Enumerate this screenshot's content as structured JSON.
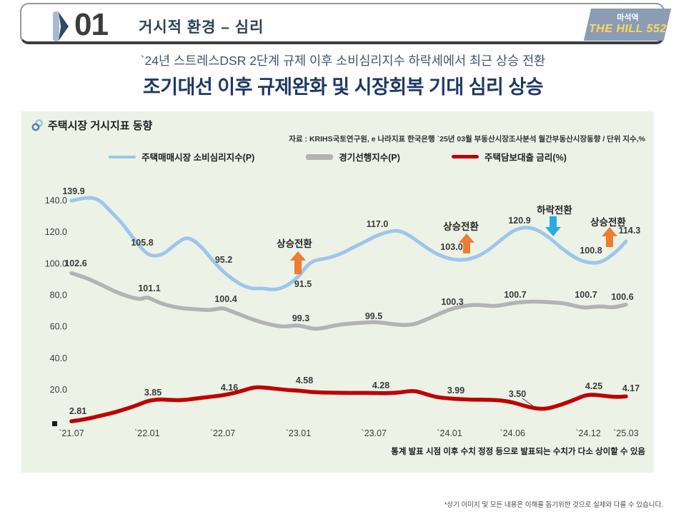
{
  "header": {
    "number": "01",
    "title": "거시적 환경 – 심리",
    "badge": {
      "line1": "마석역",
      "line2": "THE HILL 552"
    }
  },
  "subtitle": "`24년 스트레스DSR 2단계 규제 이후 소비심리지수 하락세에서 최근 상승 전환",
  "title": "조기대선 이후 규제완화 및 시장회복 기대 심리 상승",
  "panel": {
    "heading": "주택시장 거시지표 동향",
    "source": "자료 : KRIHS국토연구원, e 나라지표 한국은행 `25년 03월 부동산시장조사분석 월간부동산시장동향 / 단위 지수,%",
    "note": "통계 발표 시점 이후 수치 정정 등으로 발표되는 수치가 다소 상이할 수 있음"
  },
  "footer": "*상기 이미지 및 모든 내용은 이해를 돕기위한 것으로 실제와 다를 수 있습니다.",
  "colors": {
    "sentiment_line": "#9dc6ea",
    "leading_line": "#b3b3b3",
    "rate_line": "#c00000",
    "up_arrow": "#ed7d31",
    "down_arrow": "#29abe2",
    "panel_bg": "#edf2e7",
    "title_navy": "#1f3864",
    "badge_bg": "#8a9db4",
    "badge_yellow": "#ffd75e"
  },
  "chart_data": {
    "type": "line",
    "title": "주택시장 거시지표 동향",
    "xlabel": "",
    "ylabel": "지수, %",
    "grid": false,
    "legend_position": "top",
    "categories": [
      "`21.07",
      "`22.01",
      "`22.07",
      "`23.01",
      "`23.07",
      "`24.01",
      "`24.06",
      "`24.12",
      "`25.03"
    ],
    "y_axis_labels": [
      "140.0",
      "120.0",
      "100.0",
      "80.0",
      "60.0",
      "40.0",
      "20.0"
    ],
    "y_axis_range": [
      20,
      140
    ],
    "series": [
      {
        "name": "주택매매시장 소비심리지수(P)",
        "color": "#9dc6ea",
        "values": [
          139.9,
          105.8,
          95.2,
          91.5,
          117.0,
          103.0,
          120.9,
          100.8,
          114.3
        ],
        "labels": [
          "139.9",
          "105.8",
          "95.2",
          "91.5",
          "117.0",
          "103.0",
          "120.9",
          "100.8",
          "114.3"
        ],
        "shape_points": [
          [
            0,
            139.9
          ],
          [
            0.8,
            141.5
          ],
          [
            1.6,
            142
          ],
          [
            2.3,
            140
          ],
          [
            3,
            134
          ],
          [
            4,
            126
          ],
          [
            5,
            115
          ],
          [
            6,
            105.8
          ],
          [
            6.6,
            104.8
          ],
          [
            7.3,
            106
          ],
          [
            8.2,
            112
          ],
          [
            9,
            116.5
          ],
          [
            9.6,
            115.5
          ],
          [
            10.4,
            110
          ],
          [
            11.2,
            102
          ],
          [
            12,
            95.2
          ],
          [
            12.8,
            90
          ],
          [
            13.6,
            86
          ],
          [
            14.4,
            84
          ],
          [
            15.2,
            84.5
          ],
          [
            15.8,
            83.5
          ],
          [
            16.5,
            84
          ],
          [
            17.2,
            86.5
          ],
          [
            18,
            91.5
          ],
          [
            18.6,
            98
          ],
          [
            19.2,
            102
          ],
          [
            20,
            103
          ],
          [
            20.8,
            104.5
          ],
          [
            21.6,
            107
          ],
          [
            22.4,
            110.5
          ],
          [
            23.2,
            113.5
          ],
          [
            24,
            117
          ],
          [
            24.8,
            119.5
          ],
          [
            25.6,
            121
          ],
          [
            26.2,
            120.5
          ],
          [
            27,
            117
          ],
          [
            28,
            111
          ],
          [
            29,
            106
          ],
          [
            30,
            103
          ],
          [
            30.8,
            102.3
          ],
          [
            31.5,
            102.8
          ],
          [
            32.2,
            104.5
          ],
          [
            33,
            108
          ],
          [
            34,
            114.5
          ],
          [
            35,
            120.9
          ],
          [
            35.8,
            122.8
          ],
          [
            36.4,
            123
          ],
          [
            37.2,
            120.5
          ],
          [
            38,
            116
          ],
          [
            39,
            109
          ],
          [
            40,
            103.5
          ],
          [
            40.8,
            101
          ],
          [
            41.5,
            100.3
          ],
          [
            42.2,
            101.5
          ],
          [
            43,
            106
          ],
          [
            43.6,
            110.5
          ],
          [
            44,
            114.3
          ]
        ]
      },
      {
        "name": "경기선행지수(P)",
        "color": "#b3b3b3",
        "values": [
          102.6,
          101.1,
          100.4,
          99.3,
          99.5,
          100.3,
          100.7,
          100.7,
          100.6
        ],
        "labels": [
          "102.6",
          "101.1",
          "100.4",
          "99.3",
          "99.5",
          "100.3",
          "100.7",
          "100.7",
          "100.6"
        ],
        "shape_points": [
          [
            0,
            102.6
          ],
          [
            1,
            102.35
          ],
          [
            2,
            102.0
          ],
          [
            3,
            101.6
          ],
          [
            4,
            101.25
          ],
          [
            5,
            101.0
          ],
          [
            5.6,
            100.95
          ],
          [
            6,
            101.1
          ],
          [
            6.6,
            100.85
          ],
          [
            7.4,
            100.6
          ],
          [
            8.2,
            100.45
          ],
          [
            9,
            100.35
          ],
          [
            10,
            100.3
          ],
          [
            10.8,
            100.25
          ],
          [
            11.4,
            100.3
          ],
          [
            12,
            100.4
          ],
          [
            12.8,
            100.15
          ],
          [
            13.6,
            99.9
          ],
          [
            14.4,
            99.65
          ],
          [
            15.2,
            99.45
          ],
          [
            16,
            99.3
          ],
          [
            16.8,
            99.2
          ],
          [
            17.4,
            99.25
          ],
          [
            18,
            99.3
          ],
          [
            18.7,
            99.15
          ],
          [
            19.4,
            99.05
          ],
          [
            20.2,
            99.15
          ],
          [
            21,
            99.3
          ],
          [
            22,
            99.4
          ],
          [
            23,
            99.45
          ],
          [
            24,
            99.5
          ],
          [
            24.8,
            99.45
          ],
          [
            25.6,
            99.35
          ],
          [
            26.4,
            99.3
          ],
          [
            27.2,
            99.35
          ],
          [
            28,
            99.6
          ],
          [
            29,
            99.95
          ],
          [
            30,
            100.3
          ],
          [
            31,
            100.5
          ],
          [
            32,
            100.6
          ],
          [
            32.8,
            100.55
          ],
          [
            33.6,
            100.5
          ],
          [
            34.4,
            100.6
          ],
          [
            35,
            100.7
          ],
          [
            36,
            100.78
          ],
          [
            37,
            100.8
          ],
          [
            38,
            100.75
          ],
          [
            39,
            100.7
          ],
          [
            39.8,
            100.55
          ],
          [
            40.6,
            100.4
          ],
          [
            41.3,
            100.45
          ],
          [
            42,
            100.5
          ],
          [
            42.8,
            100.42
          ],
          [
            43.4,
            100.48
          ],
          [
            44,
            100.6
          ]
        ]
      },
      {
        "name": "주택담보대출 금리(%)",
        "color": "#c00000",
        "values": [
          2.81,
          3.85,
          4.16,
          4.58,
          4.28,
          3.99,
          3.5,
          4.25,
          4.17
        ],
        "labels": [
          "2.81",
          "3.85",
          "4.16",
          "4.58",
          "4.28",
          "3.99",
          "3.50",
          "4.25",
          "4.17"
        ],
        "shape_points": [
          [
            0,
            2.81
          ],
          [
            1,
            2.9
          ],
          [
            2,
            3.05
          ],
          [
            3,
            3.2
          ],
          [
            4,
            3.38
          ],
          [
            5,
            3.6
          ],
          [
            5.6,
            3.75
          ],
          [
            6,
            3.85
          ],
          [
            6.8,
            3.95
          ],
          [
            7.6,
            3.93
          ],
          [
            8.4,
            3.9
          ],
          [
            9.2,
            3.93
          ],
          [
            10,
            4.0
          ],
          [
            11,
            4.08
          ],
          [
            12,
            4.16
          ],
          [
            12.8,
            4.26
          ],
          [
            13.6,
            4.4
          ],
          [
            14.4,
            4.56
          ],
          [
            14.9,
            4.58
          ],
          [
            15.6,
            4.54
          ],
          [
            16.4,
            4.48
          ],
          [
            17.2,
            4.43
          ],
          [
            18,
            4.4
          ],
          [
            19,
            4.33
          ],
          [
            20,
            4.3
          ],
          [
            21,
            4.29
          ],
          [
            22,
            4.28
          ],
          [
            23,
            4.28
          ],
          [
            24,
            4.28
          ],
          [
            25,
            4.26
          ],
          [
            26,
            4.3
          ],
          [
            26.8,
            4.38
          ],
          [
            27.4,
            4.37
          ],
          [
            28.2,
            4.2
          ],
          [
            29,
            4.06
          ],
          [
            30,
            3.99
          ],
          [
            31,
            3.95
          ],
          [
            32,
            3.93
          ],
          [
            33,
            3.93
          ],
          [
            34,
            3.9
          ],
          [
            35,
            3.8
          ],
          [
            36,
            3.6
          ],
          [
            36.8,
            3.48
          ],
          [
            37.4,
            3.45
          ],
          [
            38,
            3.5
          ],
          [
            39,
            3.7
          ],
          [
            40,
            3.95
          ],
          [
            40.7,
            4.15
          ],
          [
            41.3,
            4.2
          ],
          [
            42,
            4.15
          ],
          [
            42.7,
            4.1
          ],
          [
            43.3,
            4.07
          ],
          [
            44,
            4.1
          ]
        ]
      }
    ],
    "annotations": [
      {
        "text": "상승전환",
        "direction": "up",
        "color": "#ed7d31",
        "near": "`23.01"
      },
      {
        "text": "상승전환",
        "direction": "up",
        "color": "#ed7d31",
        "near": "`24.01"
      },
      {
        "text": "하락전환",
        "direction": "down",
        "color": "#29abe2",
        "near": "`24.06"
      },
      {
        "text": "상승전환",
        "direction": "up",
        "color": "#ed7d31",
        "near": "`25.03"
      }
    ]
  }
}
